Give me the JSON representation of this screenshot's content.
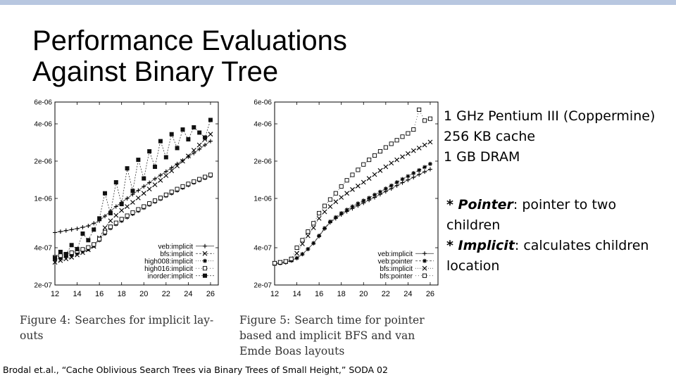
{
  "slide": {
    "title_line1": "Performance Evaluations",
    "title_line2": "Against Binary Tree",
    "specs": [
      "1 GHz Pentium III (Coppermine)",
      "256 KB cache",
      "1 GB DRAM"
    ],
    "notes": [
      {
        "term": "* Pointer",
        "text": ": pointer to two children"
      },
      {
        "term": "* Implicit",
        "text": ": calculates children location"
      }
    ],
    "citation": "Brodal et.al., “Cache Oblivious Search Trees via Binary Trees of Small Height,” SODA 02",
    "colors": {
      "topbar": "#b8c7e0",
      "text": "#000000"
    }
  },
  "figures": [
    {
      "label": "Figure 4:",
      "text": "Searches for implicit lay- outs"
    },
    {
      "label": "Figure 5:",
      "text": "Search time for pointer based and implicit BFS and van Emde Boas layouts"
    }
  ],
  "chart_data": [
    {
      "type": "line",
      "title": "",
      "xlabel": "",
      "ylabel": "",
      "x": [
        12,
        12.5,
        13,
        13.5,
        14,
        14.5,
        15,
        15.5,
        16,
        16.5,
        17,
        17.5,
        18,
        18.5,
        19,
        19.5,
        20,
        20.5,
        21,
        21.5,
        22,
        22.5,
        23,
        23.5,
        24,
        24.5,
        25,
        25.5,
        26
      ],
      "xlim": [
        12,
        26.7
      ],
      "xticks": [
        "12",
        "14",
        "16",
        "18",
        "20",
        "22",
        "24",
        "26"
      ],
      "ylim": [
        2e-07,
        6e-06
      ],
      "yscale": "log",
      "yticks": [
        "6e-06",
        "4e-06",
        "2e-06",
        "1e-06",
        "4e-07",
        "2e-07"
      ],
      "legend_position": "bottom-right",
      "series": [
        {
          "name": "veb:implicit",
          "marker": "plus",
          "values": [
            5.3e-07,
            5.4e-07,
            5.5e-07,
            5.6e-07,
            5.7e-07,
            5.85e-07,
            6e-07,
            6.3e-07,
            6.6e-07,
            7.2e-07,
            7.9e-07,
            8.6e-07,
            9.3e-07,
            1e-06,
            1.08e-06,
            1.16e-06,
            1.25e-06,
            1.34e-06,
            1.44e-06,
            1.54e-06,
            1.65e-06,
            1.77e-06,
            1.9e-06,
            2.03e-06,
            2.17e-06,
            2.32e-06,
            2.5e-06,
            2.7e-06,
            2.9e-06
          ]
        },
        {
          "name": "bfs:implicit",
          "marker": "cross",
          "values": [
            3.05e-07,
            3.15e-07,
            3.25e-07,
            3.35e-07,
            3.5e-07,
            3.65e-07,
            3.85e-07,
            4.1e-07,
            4.8e-07,
            5.8e-07,
            6.6e-07,
            7.3e-07,
            8e-07,
            8.6e-07,
            9.3e-07,
            1.01e-06,
            1.1e-06,
            1.19e-06,
            1.29e-06,
            1.4e-06,
            1.53e-06,
            1.67e-06,
            1.83e-06,
            2e-06,
            2.2e-06,
            2.45e-06,
            2.7e-06,
            3e-06,
            3.3e-06
          ]
        },
        {
          "name": "high008:implicit",
          "marker": "star",
          "values": [
            3.2e-07,
            3.3e-07,
            3.4e-07,
            3.5e-07,
            3.62e-07,
            3.75e-07,
            3.9e-07,
            4.15e-07,
            4.6e-07,
            5.2e-07,
            5.75e-07,
            6.2e-07,
            6.6e-07,
            7.05e-07,
            7.5e-07,
            7.95e-07,
            8.4e-07,
            8.9e-07,
            9.4e-07,
            9.9e-07,
            1.05e-06,
            1.1e-06,
            1.16e-06,
            1.22e-06,
            1.28e-06,
            1.34e-06,
            1.4e-06,
            1.46e-06,
            1.52e-06
          ]
        },
        {
          "name": "high016:implicit",
          "marker": "square-open",
          "values": [
            3.35e-07,
            3.45e-07,
            3.55e-07,
            3.65e-07,
            3.75e-07,
            3.88e-07,
            4.02e-07,
            4.25e-07,
            4.7e-07,
            5.35e-07,
            5.9e-07,
            6.35e-07,
            6.8e-07,
            7.25e-07,
            7.7e-07,
            8.15e-07,
            8.6e-07,
            9.1e-07,
            9.6e-07,
            1.01e-06,
            1.07e-06,
            1.13e-06,
            1.19e-06,
            1.25e-06,
            1.31e-06,
            1.37e-06,
            1.43e-06,
            1.49e-06,
            1.55e-06
          ]
        },
        {
          "name": "inorder:implicit",
          "marker": "square-filled",
          "values": [
            3.3e-07,
            3.7e-07,
            3.55e-07,
            4.2e-07,
            3.9e-07,
            5.2e-07,
            4.6e-07,
            5.6e-07,
            6.9e-07,
            1.1e-06,
            7.6e-07,
            1.35e-06,
            9e-07,
            1.75e-06,
            1.15e-06,
            2.05e-06,
            1.45e-06,
            2.4e-06,
            1.8e-06,
            2.9e-06,
            2.15e-06,
            3.3e-06,
            2.55e-06,
            3.6e-06,
            3e-06,
            3.75e-06,
            3.4e-06,
            3.1e-06,
            4.3e-06
          ]
        }
      ]
    },
    {
      "type": "line",
      "title": "",
      "xlabel": "",
      "ylabel": "",
      "x": [
        12,
        12.5,
        13,
        13.5,
        14,
        14.5,
        15,
        15.5,
        16,
        16.5,
        17,
        17.5,
        18,
        18.5,
        19,
        19.5,
        20,
        20.5,
        21,
        21.5,
        22,
        22.5,
        23,
        23.5,
        24,
        24.5,
        25,
        25.5,
        26
      ],
      "xlim": [
        12,
        26.7
      ],
      "xticks": [
        "12",
        "14",
        "16",
        "18",
        "20",
        "22",
        "24",
        "26"
      ],
      "ylim": [
        2e-07,
        6e-06
      ],
      "yscale": "log",
      "yticks": [
        "6e-06",
        "4e-06",
        "2e-06",
        "1e-06",
        "4e-07",
        "2e-07"
      ],
      "legend_position": "bottom-right",
      "series": [
        {
          "name": "veb:implicit",
          "marker": "plus",
          "values": [
            2.95e-07,
            3e-07,
            3.05e-07,
            3.15e-07,
            3.3e-07,
            3.55e-07,
            3.9e-07,
            4.35e-07,
            4.95e-07,
            5.7e-07,
            6.4e-07,
            6.9e-07,
            7.4e-07,
            7.85e-07,
            8.3e-07,
            8.75e-07,
            9.2e-07,
            9.7e-07,
            1.02e-06,
            1.08e-06,
            1.14e-06,
            1.2e-06,
            1.27e-06,
            1.34e-06,
            1.41e-06,
            1.48e-06,
            1.56e-06,
            1.64e-06,
            1.72e-06
          ]
        },
        {
          "name": "veb:pointer",
          "marker": "star",
          "values": [
            2.95e-07,
            3e-07,
            3.05e-07,
            3.15e-07,
            3.3e-07,
            3.55e-07,
            3.9e-07,
            4.35e-07,
            5e-07,
            5.75e-07,
            6.5e-07,
            7.05e-07,
            7.6e-07,
            8.1e-07,
            8.6e-07,
            9.1e-07,
            9.6e-07,
            1.01e-06,
            1.07e-06,
            1.13e-06,
            1.2e-06,
            1.27e-06,
            1.35e-06,
            1.43e-06,
            1.51e-06,
            1.6e-06,
            1.69e-06,
            1.79e-06,
            1.9e-06
          ]
        },
        {
          "name": "bfs:implicit",
          "marker": "cross",
          "values": [
            3e-07,
            3.05e-07,
            3.1e-07,
            3.2e-07,
            3.6e-07,
            4.3e-07,
            5e-07,
            5.8e-07,
            6.9e-07,
            7.8e-07,
            8.6e-07,
            9.4e-07,
            1.02e-06,
            1.1e-06,
            1.18e-06,
            1.26e-06,
            1.35e-06,
            1.45e-06,
            1.56e-06,
            1.68e-06,
            1.8e-06,
            1.93e-06,
            2.05e-06,
            2.17e-06,
            2.3e-06,
            2.43e-06,
            2.55e-06,
            2.7e-06,
            2.85e-06
          ]
        },
        {
          "name": "bfs:pointer",
          "marker": "square-open",
          "values": [
            3e-07,
            3.05e-07,
            3.1e-07,
            3.25e-07,
            4e-07,
            4.6e-07,
            5.4e-07,
            6.3e-07,
            7.6e-07,
            8.7e-07,
            9.8e-07,
            1.1e-06,
            1.25e-06,
            1.4e-06,
            1.55e-06,
            1.7e-06,
            1.88e-06,
            2.05e-06,
            2.22e-06,
            2.4e-06,
            2.58e-06,
            2.76e-06,
            2.95e-06,
            3.15e-06,
            3.35e-06,
            3.6e-06,
            5.2e-06,
            4.25e-06,
            4.4e-06
          ]
        }
      ]
    }
  ]
}
